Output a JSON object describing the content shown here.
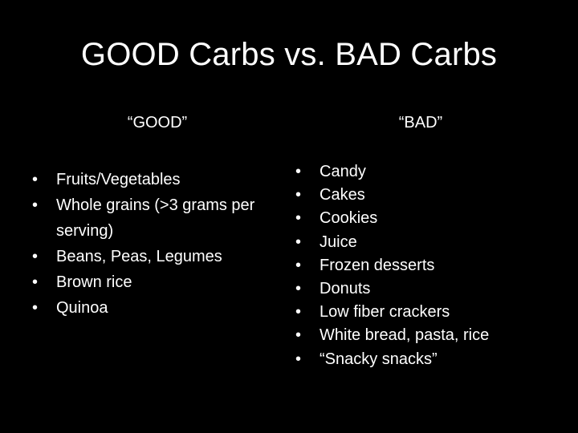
{
  "title": "GOOD Carbs vs. BAD Carbs",
  "good": {
    "heading": "“GOOD”",
    "items": [
      "Fruits/Vegetables",
      "Whole grains (>3 grams per serving)",
      "Beans, Peas, Legumes",
      "Brown rice",
      "Quinoa"
    ]
  },
  "bad": {
    "heading": "“BAD”",
    "items": [
      "Candy",
      "Cakes",
      "Cookies",
      "Juice",
      "Frozen desserts",
      "Donuts",
      "Low fiber crackers",
      "White bread, pasta, rice",
      "“Snacky snacks”"
    ]
  },
  "bullet_glyph": "•",
  "colors": {
    "background": "#000000",
    "text": "#ffffff"
  }
}
